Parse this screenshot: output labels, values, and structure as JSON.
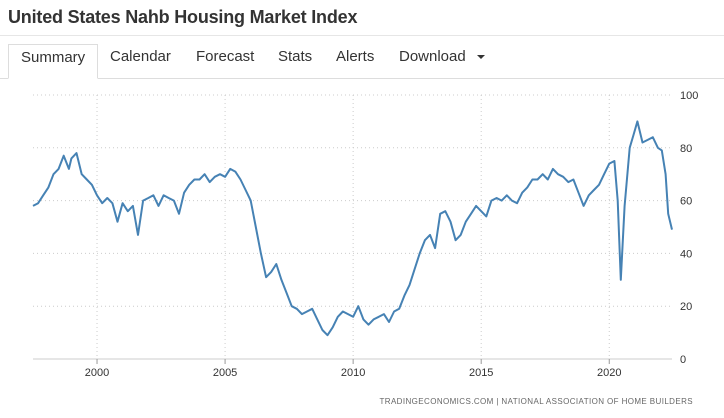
{
  "page": {
    "title": "United States Nahb Housing Market Index"
  },
  "tabs": [
    {
      "label": "Summary",
      "active": true
    },
    {
      "label": "Calendar",
      "active": false
    },
    {
      "label": "Forecast",
      "active": false
    },
    {
      "label": "Stats",
      "active": false
    },
    {
      "label": "Alerts",
      "active": false
    },
    {
      "label": "Download",
      "active": false,
      "has_dropdown": true
    }
  ],
  "colors": {
    "line": "#4682b4",
    "grid": "#cccccc",
    "axis_text": "#333333"
  },
  "chart_data": {
    "type": "line",
    "title": "",
    "xlabel": "",
    "ylabel": "",
    "xlim": [
      1997.5,
      2022.45
    ],
    "ylim": [
      0,
      100
    ],
    "x_ticks": [
      2000,
      2005,
      2010,
      2015,
      2020
    ],
    "y_ticks": [
      0,
      20,
      40,
      60,
      80,
      100
    ],
    "grid": true,
    "legend": "none",
    "source": "TRADINGECONOMICS.COM | NATIONAL ASSOCIATION OF HOME BUILDERS",
    "series": [
      {
        "color": "#4682b4",
        "x": [
          1997.5,
          1997.7,
          1997.9,
          1998.1,
          1998.3,
          1998.5,
          1998.7,
          1998.9,
          1999.0,
          1999.2,
          1999.4,
          1999.6,
          1999.8,
          2000.0,
          2000.2,
          2000.4,
          2000.6,
          2000.8,
          2001.0,
          2001.2,
          2001.4,
          2001.6,
          2001.8,
          2002.0,
          2002.2,
          2002.4,
          2002.6,
          2002.8,
          2003.0,
          2003.2,
          2003.4,
          2003.6,
          2003.8,
          2004.0,
          2004.2,
          2004.4,
          2004.6,
          2004.8,
          2005.0,
          2005.2,
          2005.4,
          2005.6,
          2005.8,
          2006.0,
          2006.2,
          2006.4,
          2006.6,
          2006.8,
          2007.0,
          2007.2,
          2007.4,
          2007.6,
          2007.8,
          2008.0,
          2008.2,
          2008.4,
          2008.6,
          2008.8,
          2009.0,
          2009.2,
          2009.4,
          2009.6,
          2009.8,
          2010.0,
          2010.2,
          2010.4,
          2010.6,
          2010.8,
          2011.0,
          2011.2,
          2011.4,
          2011.6,
          2011.8,
          2012.0,
          2012.2,
          2012.4,
          2012.6,
          2012.8,
          2013.0,
          2013.2,
          2013.4,
          2013.6,
          2013.8,
          2014.0,
          2014.2,
          2014.4,
          2014.6,
          2014.8,
          2015.0,
          2015.2,
          2015.4,
          2015.6,
          2015.8,
          2016.0,
          2016.2,
          2016.4,
          2016.6,
          2016.8,
          2017.0,
          2017.2,
          2017.4,
          2017.6,
          2017.8,
          2018.0,
          2018.2,
          2018.4,
          2018.6,
          2018.8,
          2019.0,
          2019.2,
          2019.4,
          2019.6,
          2019.8,
          2020.0,
          2020.2,
          2020.33,
          2020.45,
          2020.6,
          2020.8,
          2020.95,
          2021.1,
          2021.3,
          2021.5,
          2021.7,
          2021.9,
          2022.05,
          2022.2,
          2022.3,
          2022.45
        ],
        "y": [
          58,
          59,
          62,
          65,
          70,
          72,
          77,
          72,
          76,
          78,
          70,
          68,
          66,
          62,
          59,
          61,
          59,
          52,
          59,
          56,
          58,
          47,
          60,
          61,
          62,
          58,
          62,
          61,
          60,
          55,
          63,
          66,
          68,
          68,
          70,
          67,
          69,
          70,
          69,
          72,
          71,
          68,
          64,
          60,
          50,
          40,
          31,
          33,
          36,
          30,
          25,
          20,
          19,
          17,
          18,
          19,
          15,
          11,
          9,
          12,
          16,
          18,
          17,
          16,
          20,
          15,
          13,
          15,
          16,
          17,
          14,
          18,
          19,
          24,
          28,
          34,
          40,
          45,
          47,
          42,
          55,
          56,
          52,
          45,
          47,
          52,
          55,
          58,
          56,
          54,
          60,
          61,
          60,
          62,
          60,
          59,
          63,
          65,
          68,
          68,
          70,
          68,
          72,
          70,
          69,
          67,
          68,
          63,
          58,
          62,
          64,
          66,
          70,
          74,
          75,
          60,
          30,
          58,
          80,
          85,
          90,
          82,
          83,
          84,
          80,
          79,
          70,
          55,
          49
        ]
      }
    ]
  }
}
